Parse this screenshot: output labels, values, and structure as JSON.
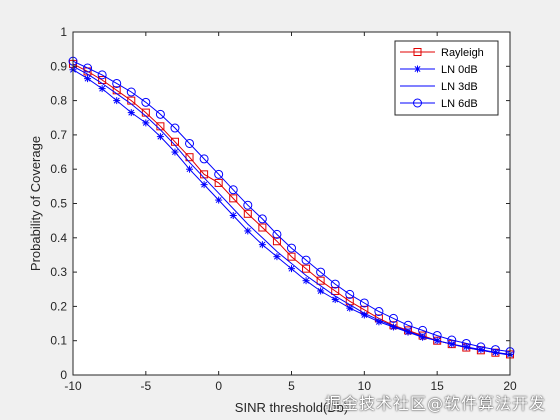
{
  "chart_data": {
    "type": "line",
    "title": "",
    "xlabel": "SINR threshold(Db)",
    "ylabel": "Probability of Coverage",
    "xlim": [
      -10,
      20
    ],
    "ylim": [
      0,
      1
    ],
    "x_ticks": [
      "-10",
      "-5",
      "0",
      "5",
      "10",
      "15",
      "20"
    ],
    "y_ticks": [
      "0",
      "0.1",
      "0.2",
      "0.3",
      "0.4",
      "0.5",
      "0.6",
      "0.7",
      "0.8",
      "0.9",
      "1"
    ],
    "grid": false,
    "legend_position": "top-right",
    "x": [
      -10,
      -9,
      -8,
      -7,
      -6,
      -5,
      -4,
      -3,
      -2,
      -1,
      0,
      1,
      2,
      3,
      4,
      5,
      6,
      7,
      8,
      9,
      10,
      11,
      12,
      13,
      14,
      15,
      16,
      17,
      18,
      19,
      20
    ],
    "series": [
      {
        "name": "Rayleigh",
        "color": "#e00000",
        "marker": "square",
        "values": [
          0.907,
          0.885,
          0.86,
          0.83,
          0.8,
          0.765,
          0.725,
          0.68,
          0.635,
          0.585,
          0.56,
          0.515,
          0.47,
          0.43,
          0.39,
          0.345,
          0.31,
          0.275,
          0.245,
          0.215,
          0.19,
          0.165,
          0.145,
          0.13,
          0.115,
          0.1,
          0.09,
          0.08,
          0.072,
          0.065,
          0.06
        ]
      },
      {
        "name": "LN 0dB",
        "color": "#0000ff",
        "marker": "star",
        "values": [
          0.89,
          0.864,
          0.835,
          0.8,
          0.765,
          0.735,
          0.695,
          0.65,
          0.6,
          0.555,
          0.51,
          0.465,
          0.42,
          0.38,
          0.345,
          0.31,
          0.275,
          0.245,
          0.22,
          0.195,
          0.175,
          0.155,
          0.14,
          0.125,
          0.11,
          0.1,
          0.09,
          0.082,
          0.074,
          0.066,
          0.06
        ]
      },
      {
        "name": "LN 3dB",
        "color": "#0000ff",
        "marker": "none",
        "values": [
          0.9,
          0.877,
          0.85,
          0.82,
          0.79,
          0.755,
          0.715,
          0.67,
          0.62,
          0.575,
          0.53,
          0.485,
          0.44,
          0.4,
          0.36,
          0.325,
          0.29,
          0.26,
          0.23,
          0.205,
          0.18,
          0.16,
          0.143,
          0.127,
          0.112,
          0.1,
          0.09,
          0.08,
          0.072,
          0.065,
          0.058
        ]
      },
      {
        "name": "LN 6dB",
        "color": "#0000ff",
        "marker": "circle",
        "values": [
          0.915,
          0.895,
          0.875,
          0.85,
          0.825,
          0.795,
          0.76,
          0.72,
          0.675,
          0.63,
          0.585,
          0.54,
          0.495,
          0.455,
          0.41,
          0.37,
          0.335,
          0.3,
          0.265,
          0.235,
          0.21,
          0.185,
          0.165,
          0.145,
          0.13,
          0.115,
          0.102,
          0.092,
          0.082,
          0.074,
          0.068
        ]
      }
    ]
  },
  "watermark": "掘金技术社区@软件算法开发"
}
